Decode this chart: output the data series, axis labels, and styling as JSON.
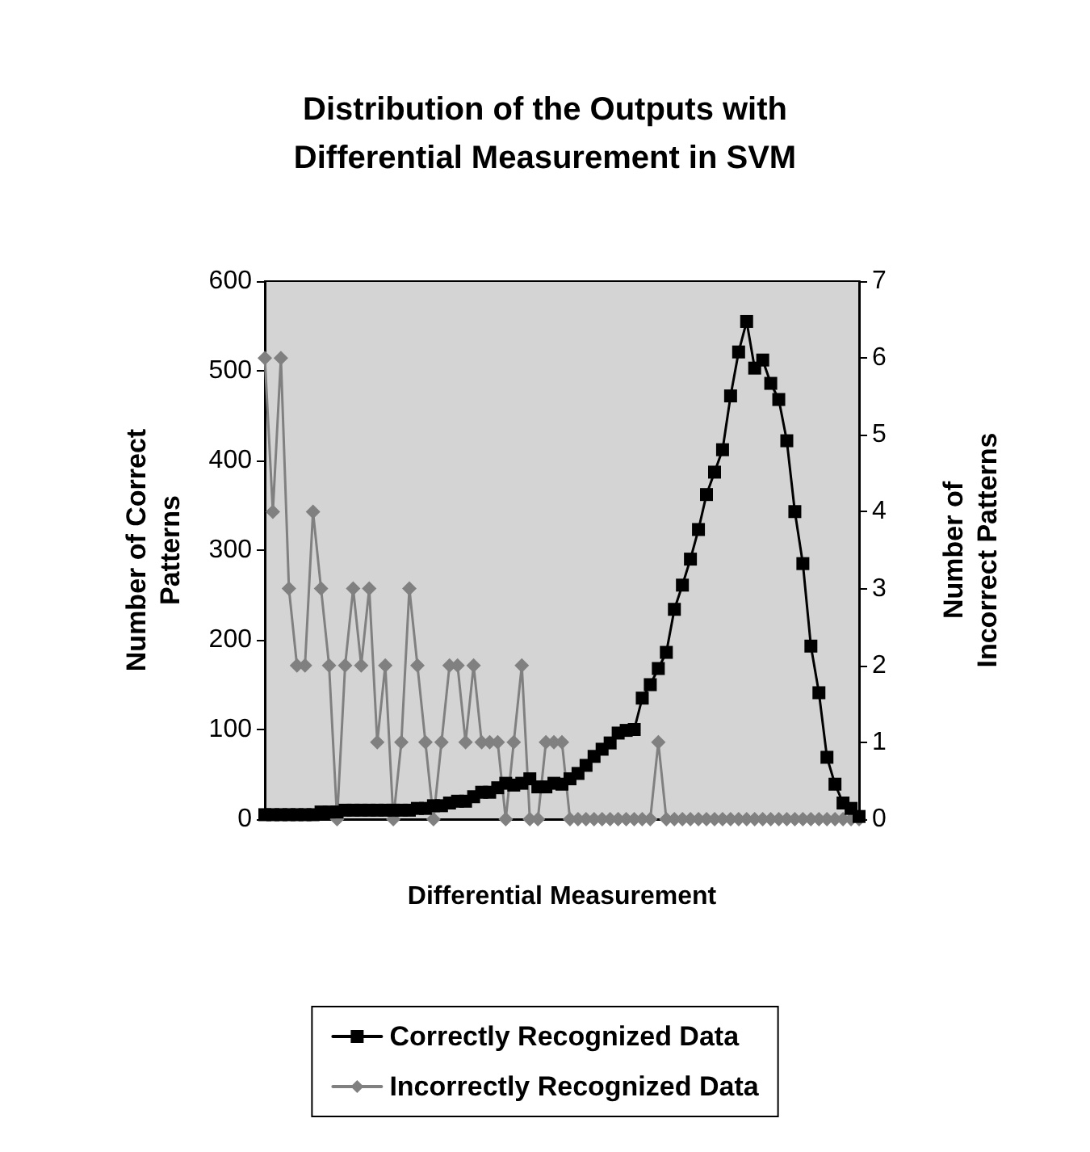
{
  "chart_data": {
    "type": "line",
    "title": "Distribution of the Outputs with\nDifferential Measurement in SVM",
    "xlabel": "Differential Measurement",
    "ylabel": "Number of Correct\nPatterns",
    "y2label": "Number of\nIncorrect Patterns",
    "categories": [
      null,
      null,
      null,
      null,
      null,
      null,
      null,
      null,
      null,
      null,
      null,
      null,
      null,
      null,
      null,
      null,
      null,
      null,
      null,
      null,
      null,
      null,
      null,
      null,
      null,
      null,
      null,
      null,
      null,
      null,
      null,
      null,
      null,
      null,
      null,
      null,
      null,
      null,
      null,
      null,
      null,
      null,
      null,
      null,
      null,
      null,
      null,
      null,
      null,
      null,
      null,
      null,
      null,
      null,
      null,
      null,
      null,
      null,
      null,
      null,
      null,
      null,
      null,
      null,
      null,
      null,
      null,
      null,
      null,
      null,
      null,
      null,
      null,
      null,
      null
    ],
    "series": [
      {
        "name": "Correctly Recognized Data",
        "color": "#000000",
        "marker": "square",
        "values": [
          5,
          5,
          5,
          5,
          5,
          5,
          5,
          8,
          8,
          8,
          10,
          10,
          10,
          10,
          10,
          10,
          10,
          10,
          10,
          12,
          12,
          15,
          15,
          18,
          20,
          20,
          25,
          30,
          30,
          35,
          40,
          38,
          40,
          45,
          36,
          36,
          40,
          39,
          45,
          51,
          60,
          70,
          78,
          85,
          96,
          99,
          100,
          135,
          150,
          168,
          186,
          234,
          261,
          290,
          323,
          362,
          387,
          412,
          472,
          521,
          555,
          503,
          512,
          486,
          468,
          422,
          343,
          285,
          193,
          141,
          69,
          39,
          18,
          12,
          3
        ]
      },
      {
        "name": "Incorrectly Recognized Data",
        "color": "#808080",
        "marker": "diamond",
        "axis": "y2",
        "values": [
          6,
          4,
          6,
          3,
          2,
          2,
          4,
          3,
          2,
          0,
          2,
          3,
          2,
          3,
          1,
          2,
          0,
          1,
          3,
          2,
          1,
          0,
          1,
          2,
          2,
          1,
          2,
          1,
          1,
          1,
          0,
          1,
          2,
          0,
          0,
          1,
          1,
          1,
          0,
          0,
          0,
          0,
          0,
          0,
          0,
          0,
          0,
          0,
          0,
          1,
          0,
          0,
          0,
          0,
          0,
          0,
          0,
          0,
          0,
          0,
          0,
          0,
          0,
          0,
          0,
          0,
          0,
          0,
          0,
          0,
          0,
          0,
          0,
          0,
          0
        ]
      }
    ],
    "ylim": [
      0,
      600
    ],
    "yticks": [
      0,
      100,
      200,
      300,
      400,
      500,
      600
    ],
    "y2lim": [
      0,
      7
    ],
    "y2ticks": [
      0,
      1,
      2,
      3,
      4,
      5,
      6,
      7
    ],
    "grid": false,
    "legend": "bottom"
  }
}
